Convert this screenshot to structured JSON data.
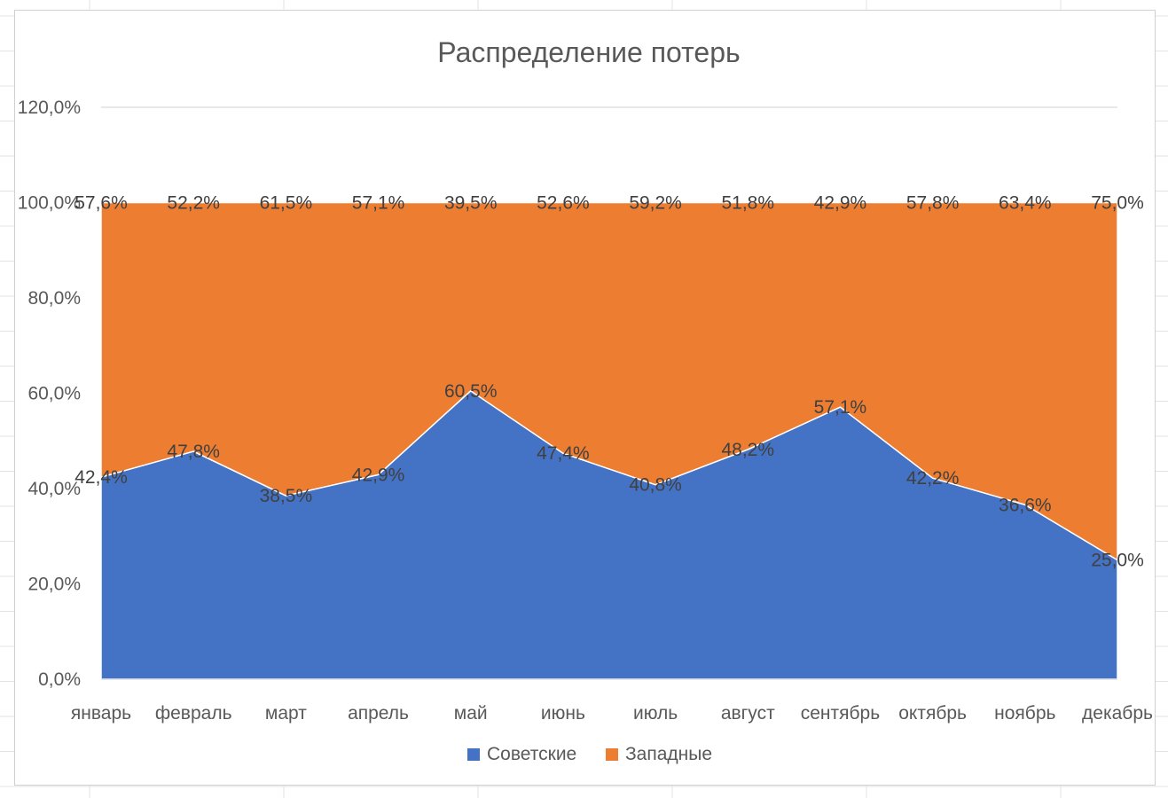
{
  "chart_data": {
    "type": "area",
    "stacked": true,
    "percent_stacked": true,
    "title": "Распределение потерь",
    "categories": [
      "январь",
      "февраль",
      "март",
      "апрель",
      "май",
      "июнь",
      "июль",
      "август",
      "сентябрь",
      "октябрь",
      "ноябрь",
      "декабрь"
    ],
    "series": [
      {
        "name": "Советские",
        "color": "#4472C4",
        "values": [
          42.4,
          47.8,
          38.5,
          42.9,
          60.5,
          47.4,
          40.8,
          48.2,
          57.1,
          42.2,
          36.6,
          25.0
        ],
        "labels": [
          "42,4%",
          "47,8%",
          "38,5%",
          "42,9%",
          "60,5%",
          "47,4%",
          "40,8%",
          "48,2%",
          "57,1%",
          "42,2%",
          "36,6%",
          "25,0%"
        ]
      },
      {
        "name": "Западные",
        "color": "#ED7D31",
        "values": [
          57.6,
          52.2,
          61.5,
          57.1,
          39.5,
          52.6,
          59.2,
          51.8,
          42.9,
          57.8,
          63.4,
          75.0
        ],
        "labels": [
          "57,6%",
          "52,2%",
          "61,5%",
          "57,1%",
          "39,5%",
          "52,6%",
          "59,2%",
          "51,8%",
          "42,9%",
          "57,8%",
          "63,4%",
          "75,0%"
        ]
      }
    ],
    "y_ticks": [
      0,
      20,
      40,
      60,
      80,
      100,
      120
    ],
    "y_tick_labels": [
      "0,0%",
      "20,0%",
      "40,0%",
      "60,0%",
      "80,0%",
      "100,0%",
      "120,0%"
    ],
    "ylim": [
      0,
      120
    ],
    "grid": true,
    "legend_position": "bottom"
  }
}
